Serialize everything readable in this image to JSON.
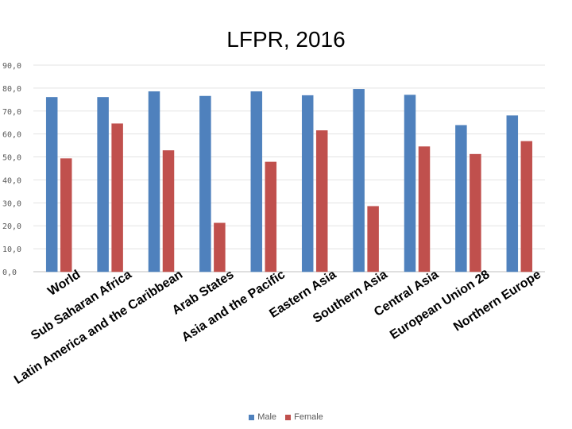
{
  "chart_data": {
    "type": "bar",
    "title": "LFPR, 2016",
    "xlabel": "",
    "ylabel": "",
    "ylim": [
      0,
      90
    ],
    "yticks": [
      "0,0",
      "10,0",
      "20,0",
      "30,0",
      "40,0",
      "50,0",
      "60,0",
      "70,0",
      "80,0",
      "90,0"
    ],
    "grid": true,
    "legend_position": "bottom",
    "categories": [
      "World",
      "Sub Saharan Africa",
      "Latin America and the Caribbean",
      "Arab States",
      "Asia and the Pacific",
      "Eastern Asia",
      "Southern Asia",
      "Central Asia",
      "European Union 28",
      "Northern Europe"
    ],
    "series": [
      {
        "name": "Male",
        "color": "#4f81bd",
        "values": [
          76.0,
          76.0,
          78.5,
          76.5,
          78.5,
          76.8,
          79.5,
          77.0,
          63.8,
          68.0
        ]
      },
      {
        "name": "Female",
        "color": "#c0504d",
        "values": [
          49.3,
          64.5,
          52.8,
          21.2,
          47.8,
          61.5,
          28.5,
          54.5,
          51.2,
          56.8
        ]
      }
    ]
  }
}
